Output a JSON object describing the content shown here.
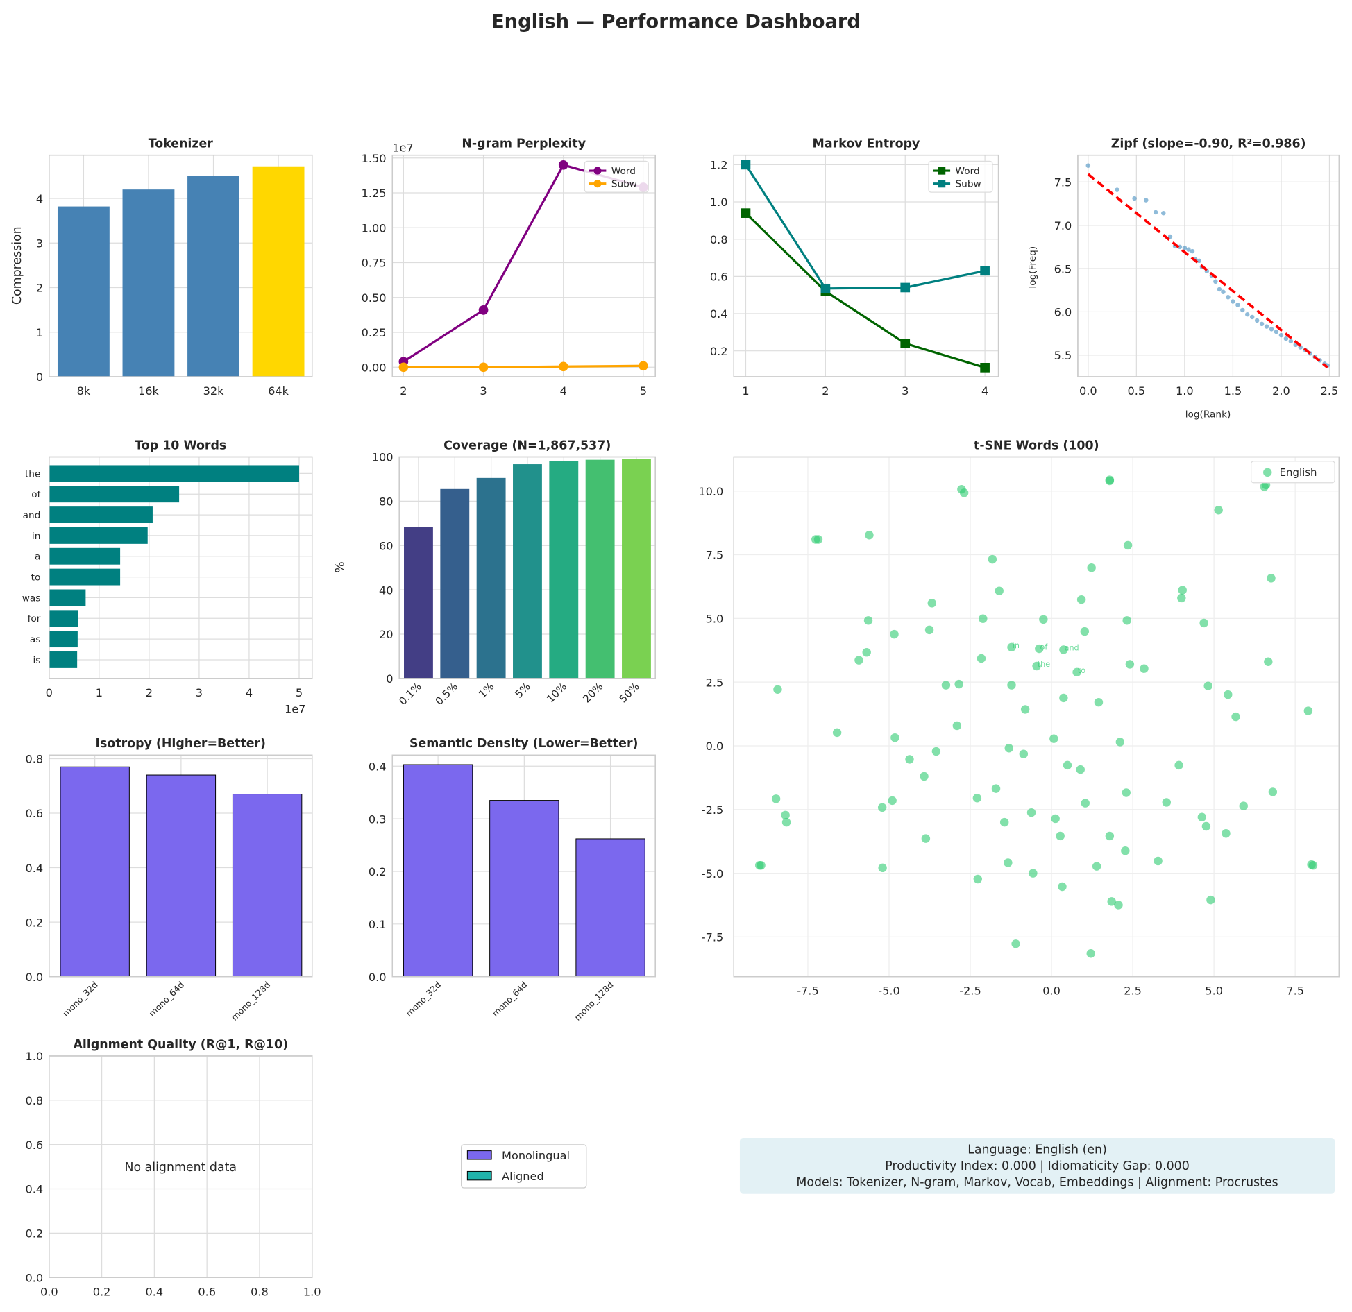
{
  "title": "English — Performance Dashboard",
  "chart_data": [
    {
      "type": "bar",
      "title": "Tokenizer",
      "xlabel": "",
      "ylabel": "Compression",
      "categories": [
        "8k",
        "16k",
        "32k",
        "64k"
      ],
      "values": [
        3.82,
        4.2,
        4.5,
        4.72
      ],
      "colors": [
        "#4682b4",
        "#4682b4",
        "#4682b4",
        "#ffd700"
      ],
      "ylim": [
        0,
        4.97
      ],
      "yticks": [
        0,
        1,
        2,
        3,
        4
      ],
      "ytick_labels": [
        "0",
        "1",
        "2",
        "3",
        "4"
      ],
      "grid": true
    },
    {
      "type": "line",
      "title": "N-gram Perplexity",
      "offset_label": "1e7",
      "x": [
        2,
        3,
        4,
        5
      ],
      "xlim": [
        1.86,
        5.15
      ],
      "xticks": [
        2,
        3,
        4,
        5
      ],
      "xtick_labels": [
        "2",
        "3",
        "4",
        "5"
      ],
      "ylim": [
        -0.068,
        1.52
      ],
      "yticks": [
        0,
        0.25,
        0.5,
        0.75,
        1.0,
        1.25,
        1.5
      ],
      "ytick_labels": [
        "0.00",
        "0.25",
        "0.50",
        "0.75",
        "1.00",
        "1.25",
        "1.50"
      ],
      "series": [
        {
          "name": "Word",
          "values": [
            0.04,
            0.41,
            1.45,
            1.29
          ],
          "color": "#800080",
          "marker": "circle"
        },
        {
          "name": "Subw",
          "values": [
            0.0,
            0.0,
            0.005,
            0.01
          ],
          "color": "#ffa500",
          "marker": "circle"
        }
      ],
      "legend": "top-right",
      "grid": true
    },
    {
      "type": "line",
      "title": "Markov Entropy",
      "x": [
        1,
        2,
        3,
        4
      ],
      "xlim": [
        0.85,
        4.17
      ],
      "xticks": [
        1,
        2,
        3,
        4
      ],
      "xtick_labels": [
        "1",
        "2",
        "3",
        "4"
      ],
      "ylim": [
        0.061,
        1.251
      ],
      "yticks": [
        0.2,
        0.4,
        0.6,
        0.8,
        1.0,
        1.2
      ],
      "ytick_labels": [
        "0.2",
        "0.4",
        "0.6",
        "0.8",
        "1.0",
        "1.2"
      ],
      "series": [
        {
          "name": "Word",
          "values": [
            0.94,
            0.52,
            0.24,
            0.11
          ],
          "color": "#006400",
          "marker": "square"
        },
        {
          "name": "Subw",
          "values": [
            1.2,
            0.535,
            0.54,
            0.63
          ],
          "color": "#008080",
          "marker": "square"
        }
      ],
      "legend": "top-right",
      "grid": true
    },
    {
      "type": "scatter",
      "title": "Zipf (slope=-0.90, R²=0.986)",
      "xlabel": "log(Rank)",
      "ylabel": "log(Freq)",
      "xlim": [
        -0.107,
        2.6
      ],
      "xticks": [
        0,
        0.5,
        1,
        1.5,
        2,
        2.5
      ],
      "xtick_labels": [
        "0.0",
        "0.5",
        "1.0",
        "1.5",
        "2.0",
        "2.5"
      ],
      "ylim": [
        5.25,
        7.81
      ],
      "yticks": [
        5.5,
        6,
        6.5,
        7,
        7.5
      ],
      "ytick_labels": [
        "5.5",
        "6.0",
        "6.5",
        "7.0",
        "7.5"
      ],
      "point_color": "#1f77b4",
      "fit": {
        "slope": -0.9,
        "intercept": 7.59,
        "x": [
          0,
          2.48
        ],
        "color": "#ff0000"
      },
      "points": [
        [
          0,
          7.69
        ],
        [
          0.3,
          7.41
        ],
        [
          0.48,
          7.31
        ],
        [
          0.6,
          7.29
        ],
        [
          0.7,
          7.15
        ],
        [
          0.78,
          7.14
        ],
        [
          0.85,
          6.87
        ],
        [
          0.9,
          6.76
        ],
        [
          0.95,
          6.75
        ],
        [
          1.0,
          6.74
        ],
        [
          1.04,
          6.72
        ],
        [
          1.08,
          6.7
        ],
        [
          1.11,
          6.61
        ],
        [
          1.15,
          6.59
        ],
        [
          1.18,
          6.52
        ],
        [
          1.23,
          6.47
        ],
        [
          1.28,
          6.42
        ],
        [
          1.32,
          6.35
        ],
        [
          1.36,
          6.26
        ],
        [
          1.4,
          6.23
        ],
        [
          1.45,
          6.17
        ],
        [
          1.5,
          6.12
        ],
        [
          1.55,
          6.08
        ],
        [
          1.6,
          6.02
        ],
        [
          1.65,
          5.97
        ],
        [
          1.7,
          5.94
        ],
        [
          1.75,
          5.9
        ],
        [
          1.8,
          5.86
        ],
        [
          1.85,
          5.83
        ],
        [
          1.9,
          5.8
        ],
        [
          1.95,
          5.77
        ],
        [
          2.0,
          5.73
        ],
        [
          2.05,
          5.69
        ],
        [
          2.1,
          5.66
        ],
        [
          2.15,
          5.62
        ],
        [
          2.2,
          5.59
        ],
        [
          2.25,
          5.56
        ],
        [
          2.3,
          5.52
        ],
        [
          2.35,
          5.48
        ],
        [
          2.4,
          5.44
        ],
        [
          2.45,
          5.4
        ],
        [
          2.48,
          5.38
        ]
      ],
      "grid": true
    },
    {
      "type": "barh",
      "title": "Top 10 Words",
      "offset_label": "1e7",
      "categories": [
        "the",
        "of",
        "and",
        "in",
        "a",
        "to",
        "was",
        "for",
        "as",
        "is"
      ],
      "values": [
        5.0,
        2.6,
        2.07,
        1.97,
        1.42,
        1.42,
        0.73,
        0.58,
        0.57,
        0.56
      ],
      "color": "#008080",
      "xlim": [
        0,
        5.26
      ],
      "xticks": [
        0,
        1,
        2,
        3,
        4,
        5
      ],
      "xtick_labels": [
        "0",
        "1",
        "2",
        "3",
        "4",
        "5"
      ],
      "grid": true
    },
    {
      "type": "bar",
      "title": "Coverage (N=1,867,537)",
      "ylabel": "%",
      "categories": [
        "0.1%",
        "0.5%",
        "1%",
        "5%",
        "10%",
        "20%",
        "50%"
      ],
      "values": [
        68.5,
        85.5,
        90.5,
        96.7,
        98.0,
        98.7,
        99.2
      ],
      "colors": [
        "#433e85",
        "#355f8d",
        "#2c728e",
        "#21918c",
        "#25ab82",
        "#44bf70",
        "#7ad151"
      ],
      "ylim": [
        0,
        100
      ],
      "yticks": [
        0,
        20,
        40,
        60,
        80,
        100
      ],
      "ytick_labels": [
        "0",
        "20",
        "40",
        "60",
        "80",
        "100"
      ],
      "grid": true
    },
    {
      "type": "scatter",
      "title": "t-SNE Words (100)",
      "series_name": "English",
      "point_color": "#2ecc71",
      "legend": "top-right",
      "xlim": [
        -9.78,
        8.85
      ],
      "xticks": [
        -7.5,
        -5,
        -2.5,
        0,
        2.5,
        5,
        7.5
      ],
      "xtick_labels": [
        "-7.5",
        "-5.0",
        "-2.5",
        "0.0",
        "2.5",
        "5.0",
        "7.5"
      ],
      "ylim": [
        -9.06,
        11.34
      ],
      "yticks": [
        -7.5,
        -5,
        -2.5,
        0,
        2.5,
        5,
        7.5,
        10
      ],
      "ytick_labels": [
        "-7.5",
        "-5.0",
        "-2.5",
        "0.0",
        "2.5",
        "5.0",
        "7.5",
        "10.0"
      ],
      "points": [
        [
          -2.77,
          10.07
        ],
        [
          -2.69,
          9.93
        ],
        [
          1.79,
          10.44
        ],
        [
          1.79,
          10.4
        ],
        [
          6.55,
          10.17
        ],
        [
          6.6,
          10.24
        ],
        [
          5.14,
          9.25
        ],
        [
          -7.26,
          8.1
        ],
        [
          -7.18,
          8.1
        ],
        [
          -5.61,
          8.27
        ],
        [
          2.35,
          7.87
        ],
        [
          -1.82,
          7.32
        ],
        [
          1.23,
          6.99
        ],
        [
          -1.61,
          6.08
        ],
        [
          4.03,
          6.11
        ],
        [
          4.0,
          5.8
        ],
        [
          6.76,
          6.58
        ],
        [
          -3.68,
          5.6
        ],
        [
          0.92,
          5.74
        ],
        [
          -5.64,
          4.92
        ],
        [
          -2.11,
          4.99
        ],
        [
          -0.25,
          4.96
        ],
        [
          2.32,
          4.92
        ],
        [
          4.69,
          4.82
        ],
        [
          -4.84,
          4.38
        ],
        [
          -3.76,
          4.55
        ],
        [
          1.02,
          4.49
        ],
        [
          -1.23,
          3.87
        ],
        [
          -0.38,
          3.81
        ],
        [
          0.37,
          3.77
        ],
        [
          -5.69,
          3.67
        ],
        [
          -5.93,
          3.36
        ],
        [
          -0.46,
          3.13
        ],
        [
          0.78,
          2.89
        ],
        [
          -2.16,
          3.43
        ],
        [
          2.41,
          3.2
        ],
        [
          2.85,
          3.03
        ],
        [
          6.67,
          3.3
        ],
        [
          -8.43,
          2.21
        ],
        [
          -3.25,
          2.38
        ],
        [
          -2.85,
          2.42
        ],
        [
          -1.23,
          2.38
        ],
        [
          4.82,
          2.35
        ],
        [
          5.43,
          2.01
        ],
        [
          0.37,
          1.88
        ],
        [
          1.45,
          1.71
        ],
        [
          5.67,
          1.14
        ],
        [
          7.9,
          1.37
        ],
        [
          -0.81,
          1.43
        ],
        [
          -2.91,
          0.79
        ],
        [
          -6.6,
          0.52
        ],
        [
          -4.82,
          0.32
        ],
        [
          0.07,
          0.28
        ],
        [
          2.11,
          0.15
        ],
        [
          -1.31,
          -0.09
        ],
        [
          -3.55,
          -0.22
        ],
        [
          -0.86,
          -0.32
        ],
        [
          -4.37,
          -0.53
        ],
        [
          0.49,
          -0.76
        ],
        [
          0.89,
          -0.93
        ],
        [
          3.92,
          -0.76
        ],
        [
          -3.92,
          -1.2
        ],
        [
          -1.71,
          -1.68
        ],
        [
          2.3,
          -1.84
        ],
        [
          6.81,
          -1.81
        ],
        [
          -8.48,
          -2.08
        ],
        [
          -2.29,
          -2.05
        ],
        [
          -4.9,
          -2.15
        ],
        [
          1.04,
          -2.25
        ],
        [
          3.54,
          -2.22
        ],
        [
          -5.21,
          -2.42
        ],
        [
          5.91,
          -2.36
        ],
        [
          -0.62,
          -2.62
        ],
        [
          -8.19,
          -2.72
        ],
        [
          0.12,
          -2.86
        ],
        [
          4.63,
          -2.8
        ],
        [
          -1.45,
          -3.0
        ],
        [
          -8.16,
          -3.0
        ],
        [
          4.76,
          -3.16
        ],
        [
          5.37,
          -3.44
        ],
        [
          0.27,
          -3.54
        ],
        [
          1.79,
          -3.54
        ],
        [
          -3.87,
          -3.64
        ],
        [
          2.27,
          -4.12
        ],
        [
          -8.99,
          -4.69
        ],
        [
          -8.94,
          -4.69
        ],
        [
          8.0,
          -4.66
        ],
        [
          8.05,
          -4.69
        ],
        [
          -1.34,
          -4.59
        ],
        [
          3.28,
          -4.52
        ],
        [
          -5.2,
          -4.79
        ],
        [
          1.39,
          -4.73
        ],
        [
          -0.57,
          -5.0
        ],
        [
          -2.27,
          -5.23
        ],
        [
          0.33,
          -5.53
        ],
        [
          1.85,
          -6.11
        ],
        [
          2.06,
          -6.25
        ],
        [
          4.9,
          -6.05
        ],
        [
          -1.1,
          -7.77
        ],
        [
          1.21,
          -8.15
        ]
      ],
      "annotations": [
        {
          "text": "in",
          "x": -1.23,
          "y": 3.87
        },
        {
          "text": "of",
          "x": -0.38,
          "y": 3.81
        },
        {
          "text": "and",
          "x": 0.37,
          "y": 3.77
        },
        {
          "text": "the",
          "x": -0.46,
          "y": 3.13
        },
        {
          "text": "to",
          "x": 0.78,
          "y": 2.89
        }
      ],
      "grid": true
    },
    {
      "type": "bar",
      "title": "Isotropy (Higher=Better)",
      "categories": [
        "mono_32d",
        "mono_64d",
        "mono_128d"
      ],
      "values": [
        0.77,
        0.74,
        0.67
      ],
      "colors": [
        "#7b68ee",
        "#7b68ee",
        "#7b68ee"
      ],
      "ylim": [
        0,
        0.813
      ],
      "yticks": [
        0,
        0.2,
        0.4,
        0.6,
        0.8
      ],
      "ytick_labels": [
        "0.0",
        "0.2",
        "0.4",
        "0.6",
        "0.8"
      ],
      "grid": true
    },
    {
      "type": "bar",
      "title": "Semantic Density (Lower=Better)",
      "categories": [
        "mono_32d",
        "mono_64d",
        "mono_128d"
      ],
      "values": [
        0.403,
        0.335,
        0.262
      ],
      "colors": [
        "#7b68ee",
        "#7b68ee",
        "#7b68ee"
      ],
      "ylim": [
        0,
        0.421
      ],
      "yticks": [
        0,
        0.1,
        0.2,
        0.3,
        0.4
      ],
      "ytick_labels": [
        "0.0",
        "0.1",
        "0.2",
        "0.3",
        "0.4"
      ],
      "grid": true
    },
    {
      "type": "bar",
      "title": "Alignment Quality (R@1, R@10)",
      "message": "No alignment data",
      "xlim": [
        0,
        1
      ],
      "xticks": [
        0,
        0.2,
        0.4,
        0.6,
        0.8,
        1
      ],
      "xtick_labels": [
        "0.0",
        "0.2",
        "0.4",
        "0.6",
        "0.8",
        "1.0"
      ],
      "ylim": [
        0,
        1
      ],
      "yticks": [
        0,
        0.2,
        0.4,
        0.6,
        0.8,
        1
      ],
      "ytick_labels": [
        "0.0",
        "0.2",
        "0.4",
        "0.6",
        "0.8",
        "1.0"
      ],
      "grid": true
    }
  ],
  "legend": {
    "items": [
      {
        "label": "Monolingual",
        "color": "#7b68ee"
      },
      {
        "label": "Aligned",
        "color": "#20b2aa"
      }
    ]
  },
  "info": {
    "line1": "Language: English (en)",
    "line2": "Productivity Index: 0.000  |  Idiomaticity Gap: 0.000",
    "line3": "Models: Tokenizer, N-gram, Markov, Vocab, Embeddings  |  Alignment: Procrustes",
    "background": "#e3f1f5"
  }
}
